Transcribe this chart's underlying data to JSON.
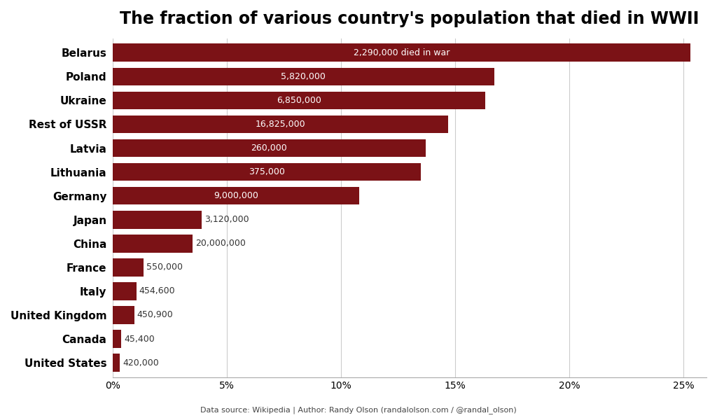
{
  "title": "The fraction of various country's population that died in WWII",
  "subtitle": "Data source: Wikipedia | Author: Randy Olson (randalolson.com / @randal_olson)",
  "countries": [
    "Belarus",
    "Poland",
    "Ukraine",
    "Rest of USSR",
    "Latvia",
    "Lithuania",
    "Germany",
    "Japan",
    "China",
    "France",
    "Italy",
    "United Kingdom",
    "Canada",
    "United States"
  ],
  "percentages": [
    25.3,
    16.7,
    16.3,
    14.7,
    13.7,
    13.5,
    10.8,
    3.9,
    3.5,
    1.35,
    1.03,
    0.94,
    0.38,
    0.32
  ],
  "deaths": [
    "2,290,000 died in war",
    "5,820,000",
    "6,850,000",
    "16,825,000",
    "260,000",
    "375,000",
    "9,000,000",
    "3,120,000",
    "20,000,000",
    "550,000",
    "454,600",
    "450,900",
    "45,400",
    "420,000"
  ],
  "bar_color": "#7B1216",
  "text_color_inside": "#FFFFFF",
  "text_color_outside": "#333333",
  "background_color": "#FFFFFF",
  "xlim": [
    0,
    26
  ],
  "xlabel_ticks": [
    0,
    5,
    10,
    15,
    20,
    25
  ],
  "xlabel_labels": [
    "0%",
    "5%",
    "10%",
    "15%",
    "20%",
    "25%"
  ],
  "inside_threshold": 5.0,
  "bar_height": 0.75,
  "label_fontsize": 9,
  "ytick_fontsize": 11,
  "xtick_fontsize": 10,
  "title_fontsize": 17,
  "subtitle_fontsize": 8
}
